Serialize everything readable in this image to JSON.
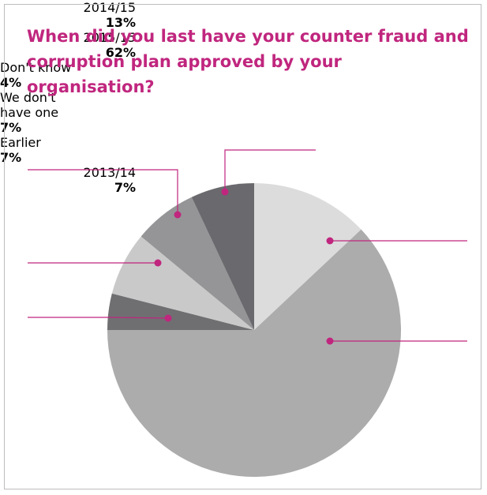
{
  "chart_data": {
    "type": "pie",
    "title": "When did you last have your counter fraud and corruption plan approved by your organisation?",
    "categories": [
      "2014/15",
      "2015/15",
      "Don't know",
      "We don't have one",
      "Earlier",
      "2013/14"
    ],
    "values": [
      13,
      62,
      4,
      7,
      7,
      7
    ],
    "value_labels": [
      "13%",
      "62%",
      "4%",
      "7%",
      "7%",
      "7%"
    ],
    "colors": [
      "#dcdcdc",
      "#acacac",
      "#6f6f72",
      "#c9c9c9",
      "#959597",
      "#6a6a6e"
    ],
    "leader_color": "#c0267e"
  }
}
